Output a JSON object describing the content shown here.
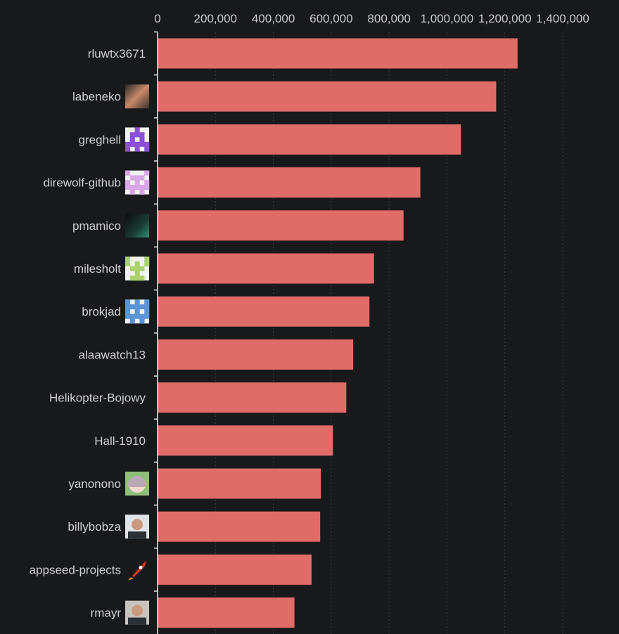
{
  "chart_data": {
    "type": "bar",
    "orientation": "horizontal",
    "categories": [
      "rluwtx3671",
      "labeneko",
      "greghell",
      "direwolf-github",
      "pmamico",
      "milesholt",
      "brokjad",
      "alaawatch13",
      "Helikopter-Bojowy",
      "Hall-1910",
      "yanonono",
      "billybobza",
      "appseed-projects",
      "rmayr"
    ],
    "avatars": [
      "",
      "photo-avatar",
      "identicon-purple",
      "identicon-pink",
      "photo-avatar",
      "identicon-green",
      "identicon-blue",
      "",
      "",
      "",
      "anime-avatar",
      "photo-avatar",
      "rocket-icon",
      "photo-avatar"
    ],
    "values": [
      1244000,
      1170000,
      1048000,
      908000,
      850000,
      748000,
      732000,
      676000,
      652000,
      606000,
      564000,
      562000,
      532000,
      473000
    ],
    "xlim": [
      0,
      1400000
    ],
    "xticks": [
      0,
      200000,
      400000,
      600000,
      800000,
      1000000,
      1200000,
      1400000
    ],
    "xtick_labels": [
      "0",
      "200,000",
      "400,000",
      "600,000",
      "800,000",
      "1,000,000",
      "1,200,000",
      "1,400,000"
    ],
    "axis_position": "top",
    "grid": true,
    "title": "",
    "xlabel": "",
    "ylabel": "",
    "colors": {
      "bar": "#e06c69",
      "background": "#18191b",
      "axis": "#e8e8e8",
      "text": "#d0d0d0"
    }
  }
}
